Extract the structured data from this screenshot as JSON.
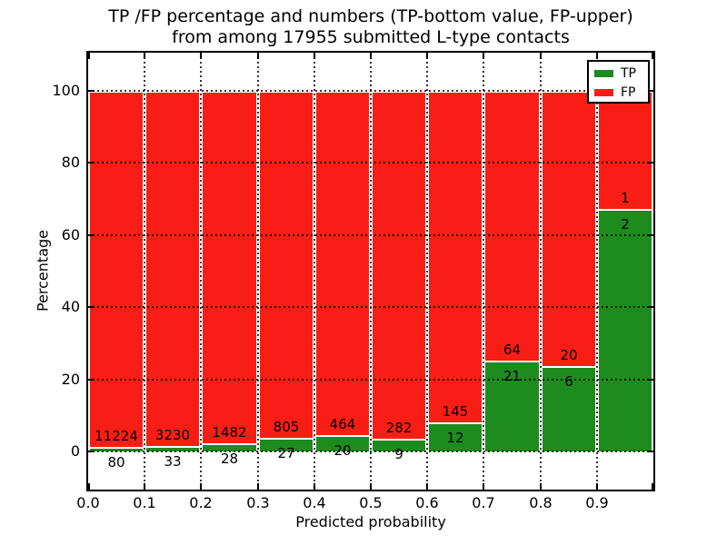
{
  "title": {
    "line1": "TP /FP percentage and numbers (TP-bottom value, FP-upper)",
    "line2": "from among 17955 submitted L-type contacts"
  },
  "chart_data": {
    "type": "bar",
    "subtype": "stacked-100-percent-histogram",
    "title": "TP /FP percentage and numbers (TP-bottom value, FP-upper) from among 17955 submitted L-type contacts",
    "total_contacts": 17955,
    "xlabel": "Predicted probability",
    "ylabel": "Percentage",
    "bin_edges": [
      0.0,
      0.1,
      0.2,
      0.3,
      0.4,
      0.5,
      0.6,
      0.7,
      0.8,
      0.9,
      1.0
    ],
    "xtick_labels": [
      "0.0",
      "0.1",
      "0.2",
      "0.3",
      "0.4",
      "0.5",
      "0.6",
      "0.7",
      "0.8",
      "0.9"
    ],
    "yticks": [
      0,
      20,
      40,
      60,
      80,
      100
    ],
    "ylim": [
      -10.6,
      110.6
    ],
    "grid": "dotted, drawn above bars",
    "legend_position": "upper right",
    "series": [
      {
        "name": "TP",
        "color": "#1e8b1e",
        "counts": [
          80,
          33,
          28,
          27,
          20,
          9,
          12,
          21,
          6,
          2
        ]
      },
      {
        "name": "FP",
        "color": "#f81e15",
        "counts": [
          11224,
          3230,
          1482,
          805,
          464,
          282,
          145,
          64,
          20,
          1
        ]
      }
    ],
    "tp_percent": [
      0.71,
      1.01,
      1.85,
      3.25,
      4.13,
      3.09,
      7.64,
      24.71,
      23.08,
      66.67
    ],
    "bar_edge_color": "#ffffff"
  }
}
